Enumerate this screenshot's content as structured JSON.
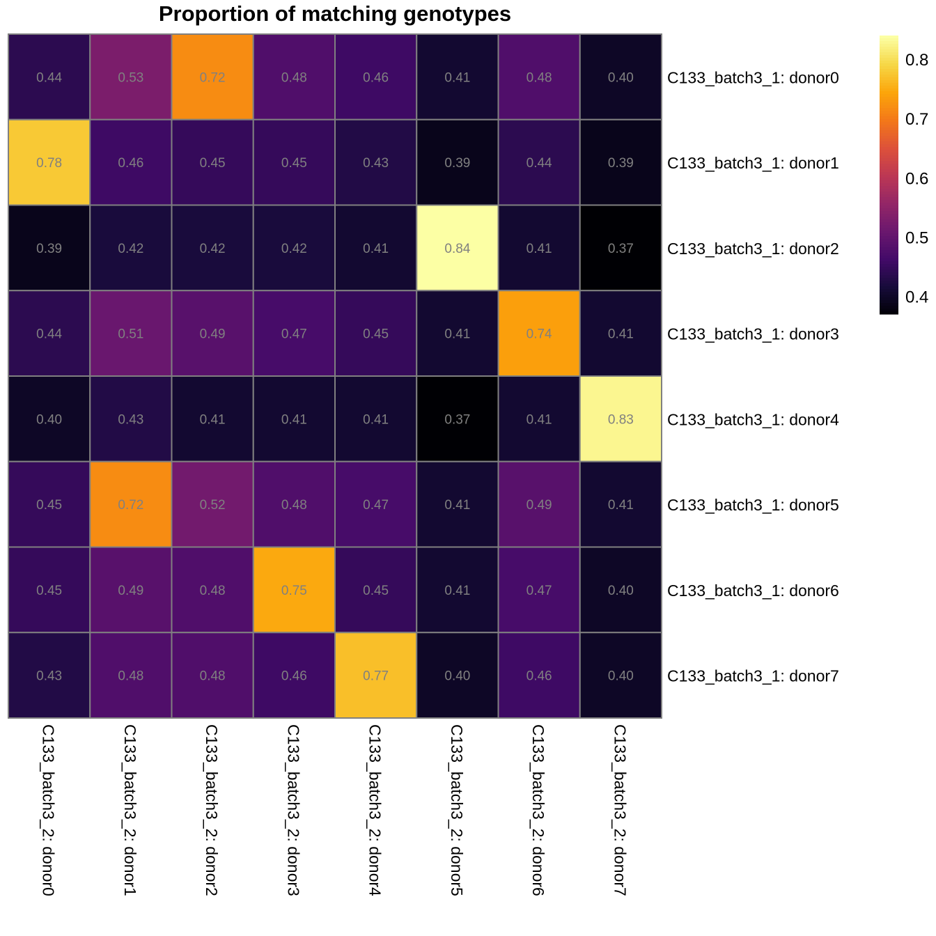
{
  "chart_data": {
    "type": "heatmap",
    "title": "Proportion of matching genotypes",
    "rows": [
      "C133_batch3_1: donor0",
      "C133_batch3_1: donor1",
      "C133_batch3_1: donor2",
      "C133_batch3_1: donor3",
      "C133_batch3_1: donor4",
      "C133_batch3_1: donor5",
      "C133_batch3_1: donor6",
      "C133_batch3_1: donor7"
    ],
    "columns": [
      "C133_batch3_2: donor0",
      "C133_batch3_2: donor1",
      "C133_batch3_2: donor2",
      "C133_batch3_2: donor3",
      "C133_batch3_2: donor4",
      "C133_batch3_2: donor5",
      "C133_batch3_2: donor6",
      "C133_batch3_2: donor7"
    ],
    "values": [
      [
        0.44,
        0.53,
        0.72,
        0.48,
        0.46,
        0.41,
        0.48,
        0.4
      ],
      [
        0.78,
        0.46,
        0.45,
        0.45,
        0.43,
        0.39,
        0.44,
        0.39
      ],
      [
        0.39,
        0.42,
        0.42,
        0.42,
        0.41,
        0.84,
        0.41,
        0.37
      ],
      [
        0.44,
        0.51,
        0.49,
        0.47,
        0.45,
        0.41,
        0.74,
        0.41
      ],
      [
        0.4,
        0.43,
        0.41,
        0.41,
        0.41,
        0.37,
        0.41,
        0.83
      ],
      [
        0.45,
        0.72,
        0.52,
        0.48,
        0.47,
        0.41,
        0.49,
        0.41
      ],
      [
        0.45,
        0.49,
        0.48,
        0.75,
        0.45,
        0.41,
        0.47,
        0.4
      ],
      [
        0.43,
        0.48,
        0.48,
        0.46,
        0.77,
        0.4,
        0.46,
        0.4
      ]
    ],
    "colormap": "inferno",
    "color_range": [
      0.37,
      0.84
    ],
    "colorbar_ticks": [
      "0.4",
      "0.5",
      "0.6",
      "0.7",
      "0.8"
    ],
    "colorbar_placement": "right",
    "cell_border_color": "#808080",
    "cell_label_color": "#808080"
  }
}
